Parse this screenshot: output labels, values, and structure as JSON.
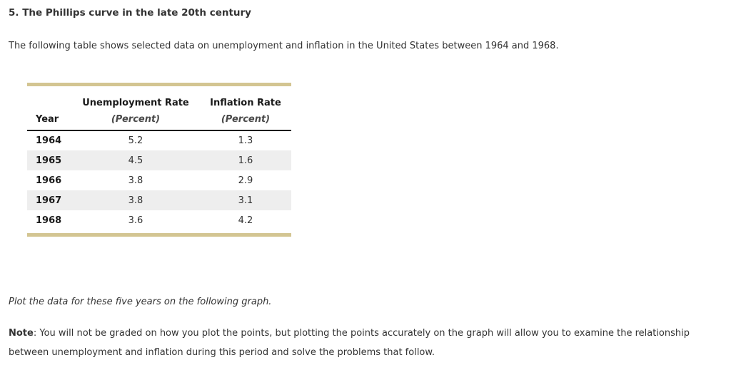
{
  "page": {
    "title": "5. The Phillips curve in the late 20th century",
    "intro": "The following table shows selected data on unemployment and inflation in the United States between 1964 and 1968.",
    "instruction": "Plot the data for these five years on the following graph.",
    "note_label": "Note",
    "note_text": ": You will not be graded on how you plot the points, but plotting the points accurately on the graph will allow you to examine the relationship between unemployment and inflation during this period and solve the problems that follow."
  },
  "table": {
    "columns": [
      {
        "label": "Year",
        "sublabel": ""
      },
      {
        "label": "Unemployment Rate",
        "sublabel": "(Percent)"
      },
      {
        "label": "Inflation Rate",
        "sublabel": "(Percent)"
      }
    ],
    "rows": [
      {
        "year": "1964",
        "unemployment": "5.2",
        "inflation": "1.3"
      },
      {
        "year": "1965",
        "unemployment": "4.5",
        "inflation": "1.6"
      },
      {
        "year": "1966",
        "unemployment": "3.8",
        "inflation": "2.9"
      },
      {
        "year": "1967",
        "unemployment": "3.8",
        "inflation": "3.1"
      },
      {
        "year": "1968",
        "unemployment": "3.6",
        "inflation": "4.2"
      }
    ]
  },
  "colors": {
    "accent_bar": "#d3c592",
    "row_stripe": "#eeeeee",
    "text": "#333333"
  },
  "chart_data": {
    "type": "table",
    "columns": [
      "Year",
      "Unemployment Rate (Percent)",
      "Inflation Rate (Percent)"
    ],
    "years": [
      1964,
      1965,
      1966,
      1967,
      1968
    ],
    "unemployment_rate_percent": [
      5.2,
      4.5,
      3.8,
      3.8,
      3.6
    ],
    "inflation_rate_percent": [
      1.3,
      1.6,
      2.9,
      3.1,
      4.2
    ]
  }
}
